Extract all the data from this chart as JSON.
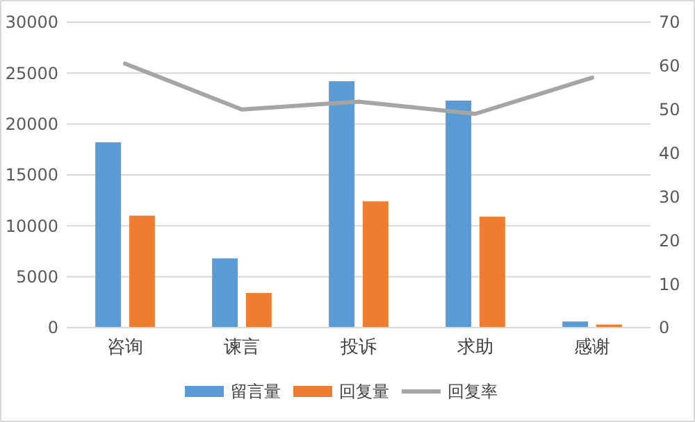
{
  "chart_data": {
    "type": "bar",
    "categories": [
      "咨询",
      "谏言",
      "投诉",
      "求助",
      "感谢"
    ],
    "series": [
      {
        "name": "留言量",
        "color": "#5b9bd5",
        "values": [
          18200,
          6800,
          24200,
          22300,
          600
        ]
      },
      {
        "name": "回复量",
        "color": "#ed7d31",
        "values": [
          11000,
          3400,
          12400,
          10900,
          300
        ]
      },
      {
        "name": "回复率",
        "color": "#a5a5a5",
        "type": "line",
        "axis": "y2",
        "values": [
          60.5,
          50,
          51.8,
          49,
          57.3
        ]
      }
    ],
    "ylim": [
      0,
      30000
    ],
    "yticks": [
      0,
      5000,
      10000,
      15000,
      20000,
      25000,
      30000
    ],
    "y2lim": [
      0,
      70
    ],
    "y2ticks": [
      0,
      10,
      20,
      30,
      40,
      50,
      60,
      70
    ],
    "grid": "y",
    "legend": "bottom"
  }
}
